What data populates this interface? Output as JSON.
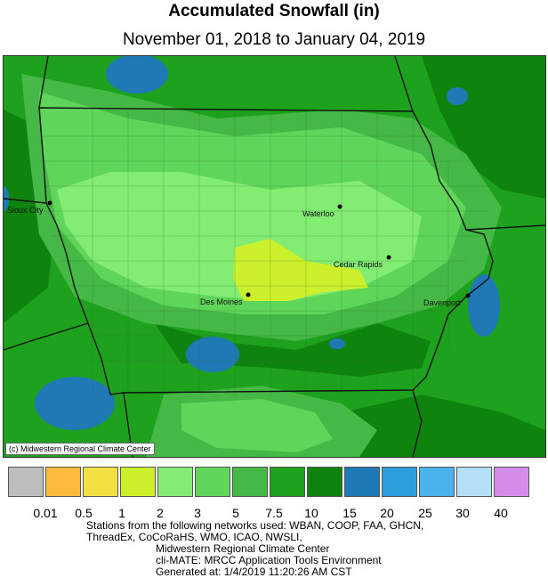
{
  "title": "Accumulated Snowfall (in)",
  "subtitle": "November 01, 2018 to January 04, 2019",
  "credit": "(c) Midwestern Regional Climate Center",
  "cities": [
    {
      "name": "Sioux City"
    },
    {
      "name": "Waterloo"
    },
    {
      "name": "Cedar Rapids"
    },
    {
      "name": "Des Moines"
    },
    {
      "name": "Davenport"
    }
  ],
  "legend": {
    "colors": [
      "#bdbdbd",
      "#fdbb3b",
      "#f2e043",
      "#cdf02c",
      "#82ec73",
      "#5fd65a",
      "#45b845",
      "#1ea21e",
      "#0e840e",
      "#1f79b5",
      "#2e9ddb",
      "#4ab3ed",
      "#b3dff9",
      "#d48cea"
    ],
    "labels": [
      "0.01",
      "0.5",
      "1",
      "2",
      "3",
      "5",
      "7.5",
      "10",
      "15",
      "20",
      "25",
      "30",
      "40"
    ]
  },
  "footer": {
    "line1": "Stations from the following networks used: WBAN, COOP, FAA, GHCN,",
    "line2": "ThreadEx, CoCoRaHS, WMO, ICAO, NWSLI,",
    "line3": "Midwestern Regional Climate Center",
    "line4": "cli-MATE: MRCC Application Tools Environment",
    "line5": "Generated at: 1/4/2019 11:20:26 AM CST"
  }
}
